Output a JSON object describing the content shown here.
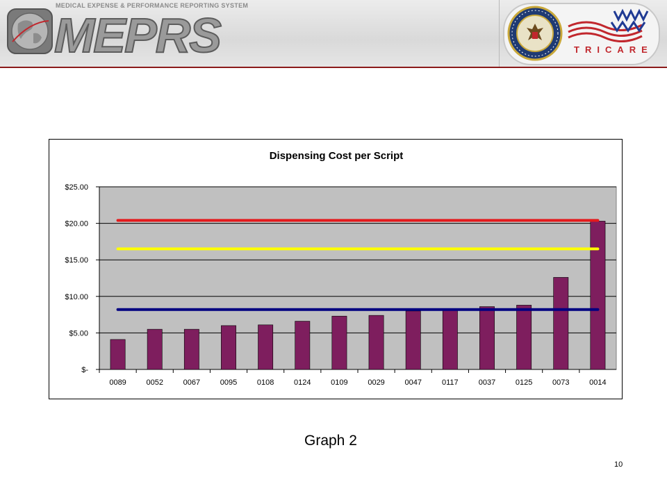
{
  "banner": {
    "subtitle": "MEDICAL EXPENSE & PERFORMANCE REPORTING SYSTEM",
    "title": "MEPRS",
    "seal_label": "DEPARTMENT OF DEFENSE · UNITED STATES OF AMERICA",
    "brand": "TRICARE",
    "colors": {
      "rule": "#8b1a1a",
      "tricare_red": "#c1272d",
      "tricare_blue": "#1f3a93"
    }
  },
  "chart_data": {
    "type": "bar",
    "title": "Dispensing Cost per Script",
    "xlabel": "",
    "ylabel": "",
    "categories": [
      "0089",
      "0052",
      "0067",
      "0095",
      "0108",
      "0124",
      "0109",
      "0029",
      "0047",
      "0117",
      "0037",
      "0125",
      "0073",
      "0014"
    ],
    "values": [
      4.1,
      5.5,
      5.5,
      6.0,
      6.1,
      6.6,
      7.3,
      7.4,
      8.0,
      8.2,
      8.6,
      8.8,
      12.6,
      20.3
    ],
    "ylim": [
      0,
      25
    ],
    "yticks": [
      0,
      5,
      10,
      15,
      20,
      25
    ],
    "ytick_labels": [
      "$-",
      "$5.00",
      "$10.00",
      "$15.00",
      "$20.00",
      "$25.00"
    ],
    "reference_lines": [
      {
        "value": 20.4,
        "color": "#e41a1c"
      },
      {
        "value": 16.5,
        "color": "#ffff00"
      },
      {
        "value": 8.2,
        "color": "#000080"
      }
    ],
    "bar_color": "#7e1e5e",
    "plot_background": "#c0c0c0",
    "grid": true,
    "legend": "none"
  },
  "caption": "Graph 2",
  "page_number": "10"
}
